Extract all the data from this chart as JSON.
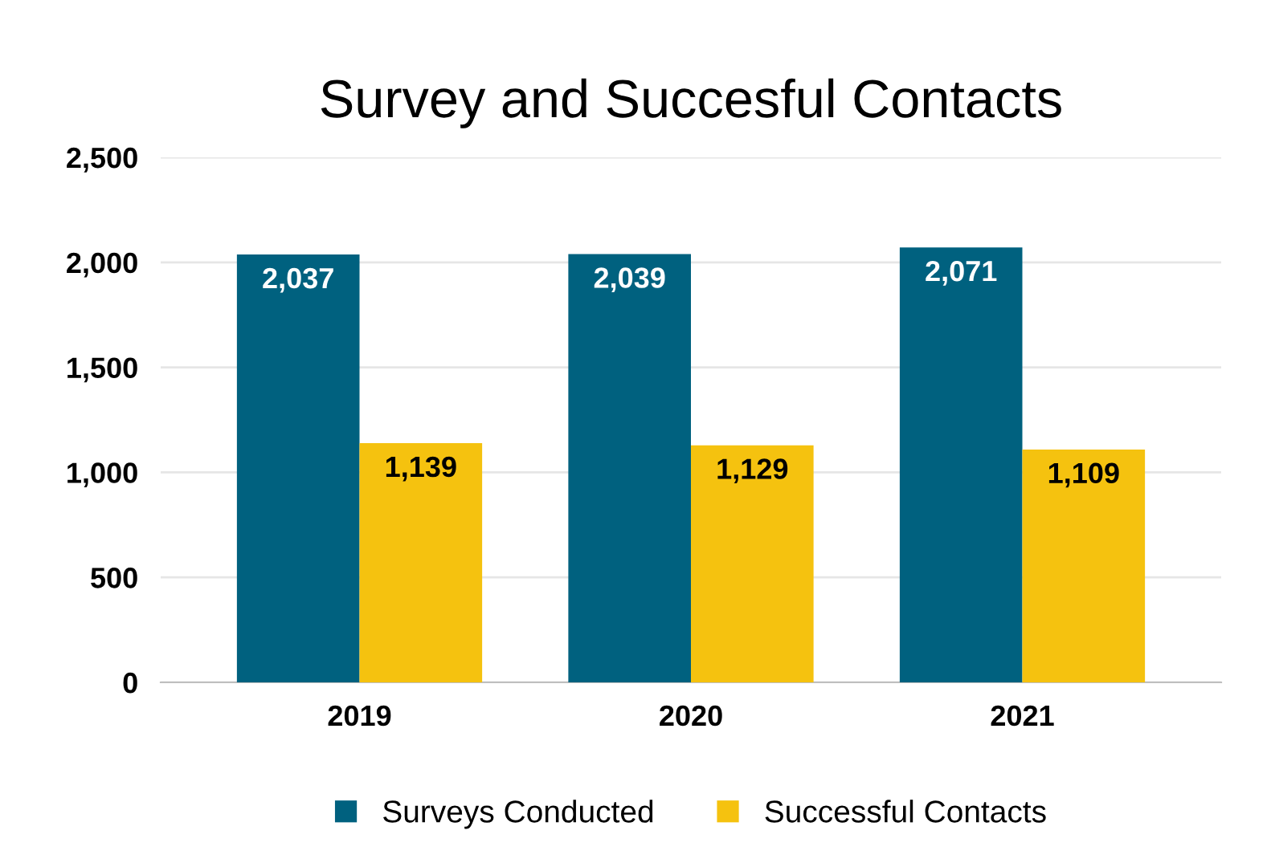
{
  "chart_data": {
    "type": "bar",
    "title": "Survey and Succesful Contacts",
    "categories": [
      "2019",
      "2020",
      "2021"
    ],
    "series": [
      {
        "name": "Surveys Conducted",
        "color": "#00617f",
        "values": [
          2037,
          2039,
          2071
        ],
        "value_labels": [
          "2,037",
          "2,039",
          "2,071"
        ]
      },
      {
        "name": "Successful Contacts",
        "color": "#f5c20f",
        "values": [
          1139,
          1129,
          1109
        ],
        "value_labels": [
          "1,139",
          "1,129",
          "1,109"
        ]
      }
    ],
    "ylim": [
      0,
      2500
    ],
    "yticks": [
      {
        "value": 0,
        "label": "0"
      },
      {
        "value": 500,
        "label": "500"
      },
      {
        "value": 1000,
        "label": "1,000"
      },
      {
        "value": 1500,
        "label": "1,500"
      },
      {
        "value": 2000,
        "label": "2,000"
      },
      {
        "value": 2500,
        "label": "2,500"
      }
    ],
    "grid": "y",
    "legend": "bottom"
  }
}
